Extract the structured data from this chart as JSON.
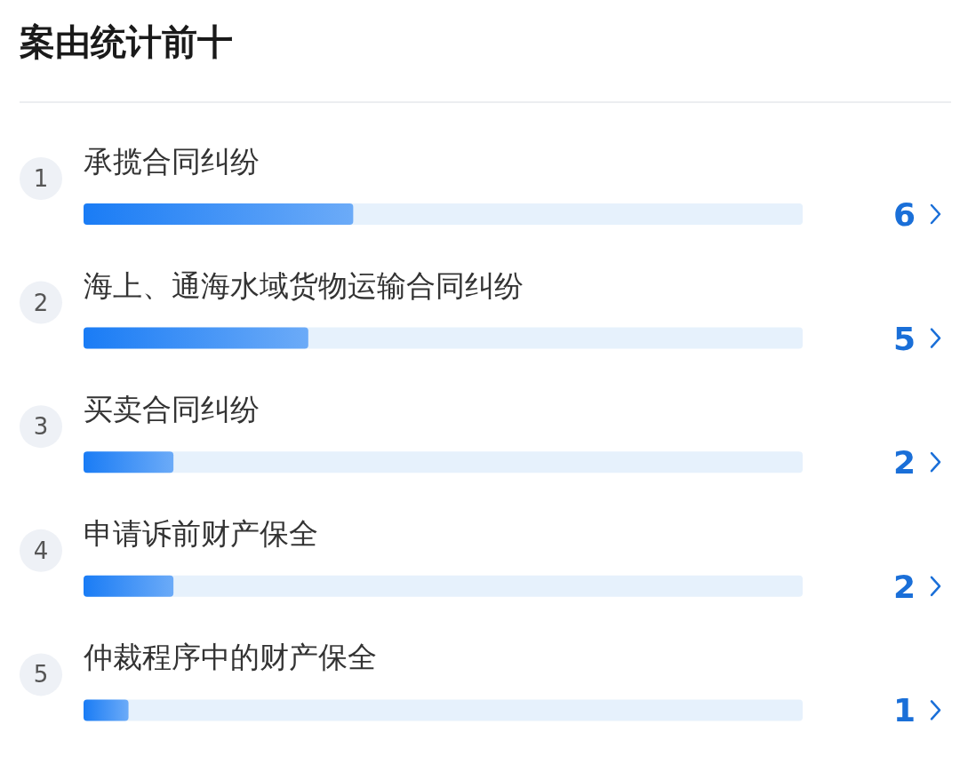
{
  "chart_data": {
    "type": "bar",
    "orientation": "horizontal",
    "title": "案由统计前十",
    "categories": [
      "承揽合同纠纷",
      "海上、通海水域货物运输合同纠纷",
      "买卖合同纠纷",
      "申请诉前财产保全",
      "仲裁程序中的财产保全"
    ],
    "values": [
      6,
      5,
      2,
      2,
      1
    ],
    "color": "#1a7cf5",
    "xlim": [
      0,
      16
    ],
    "tick_labels": false,
    "data_labels": true,
    "grid": false,
    "legend": false,
    "annotations": [
      "1",
      "2",
      "3",
      "4",
      "5"
    ]
  }
}
